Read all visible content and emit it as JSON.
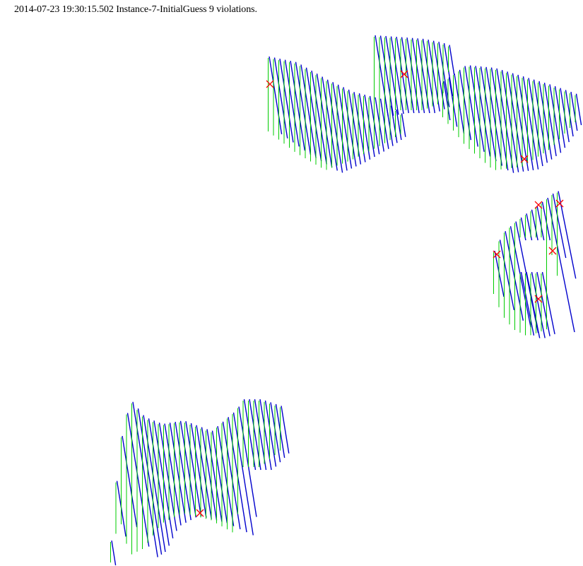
{
  "header": {
    "caption": "2014-07-23 19:30:15.502 Instance-7-InitialGuess 9 violations."
  },
  "colors": {
    "background": "#ffffff",
    "text": "#000000",
    "line_a": "#0000cc",
    "line_b": "#00cc00",
    "violation_marker": "#ff0000"
  },
  "legend": {
    "violation_marker_icon": "red-x-icon"
  }
}
